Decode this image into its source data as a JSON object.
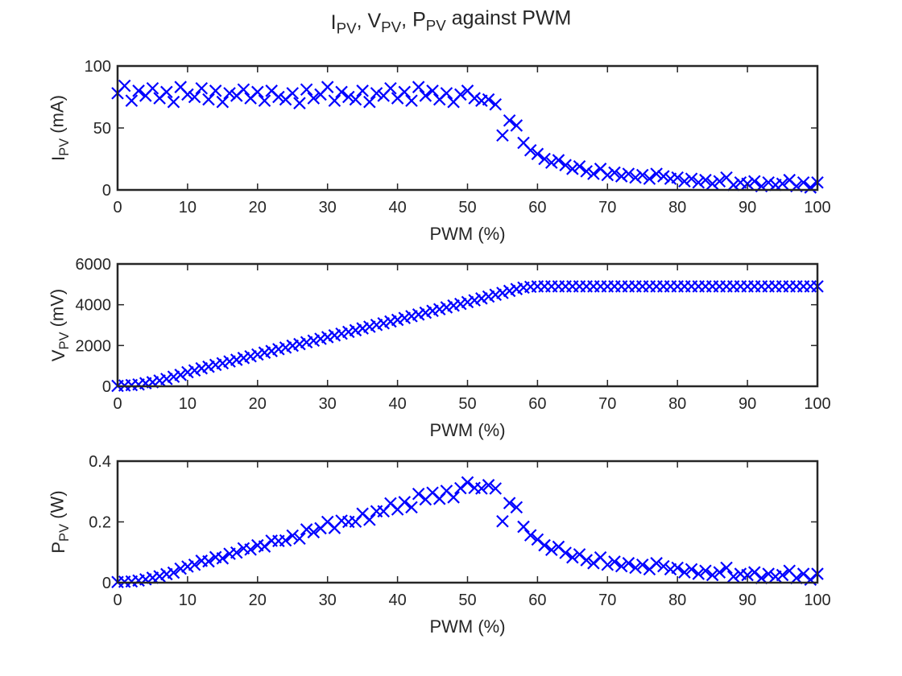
{
  "title": "I_{PV}, V_{PV}, P_{PV} against PWM",
  "chart_data": [
    {
      "type": "scatter",
      "ylabel": "I_{PV} (mA)",
      "xlabel": "PWM (%)",
      "color": "#0000ff",
      "marker": "x",
      "xlim": [
        0,
        100
      ],
      "xticks": [
        0,
        10,
        20,
        30,
        40,
        50,
        60,
        70,
        80,
        90,
        100
      ],
      "ylim": [
        0,
        100
      ],
      "yticks": [
        0,
        50,
        100
      ],
      "x": [
        0,
        1,
        2,
        3,
        4,
        5,
        6,
        7,
        8,
        9,
        10,
        11,
        12,
        13,
        14,
        15,
        16,
        17,
        18,
        19,
        20,
        21,
        22,
        23,
        24,
        25,
        26,
        27,
        28,
        29,
        30,
        31,
        32,
        33,
        34,
        35,
        36,
        37,
        38,
        39,
        40,
        41,
        42,
        43,
        44,
        45,
        46,
        47,
        48,
        49,
        50,
        51,
        52,
        53,
        54,
        55,
        56,
        57,
        58,
        59,
        60,
        61,
        62,
        63,
        64,
        65,
        66,
        67,
        68,
        69,
        70,
        71,
        72,
        73,
        74,
        75,
        76,
        77,
        78,
        79,
        80,
        81,
        82,
        83,
        84,
        85,
        86,
        87,
        88,
        89,
        90,
        91,
        92,
        93,
        94,
        95,
        96,
        97,
        98,
        99,
        100
      ],
      "values": [
        78,
        84,
        72,
        80,
        76,
        82,
        74,
        79,
        71,
        83,
        77,
        75,
        82,
        73,
        80,
        71,
        78,
        76,
        81,
        74,
        79,
        72,
        80,
        75,
        73,
        78,
        70,
        81,
        74,
        77,
        83,
        72,
        79,
        75,
        73,
        80,
        71,
        78,
        76,
        82,
        74,
        79,
        72,
        83,
        76,
        80,
        73,
        78,
        71,
        77,
        80,
        74,
        72,
        73,
        69,
        44,
        56,
        52,
        38,
        32,
        29,
        25,
        22,
        24,
        20,
        17,
        19,
        15,
        13,
        17,
        12,
        14,
        11,
        13,
        10,
        12,
        9,
        13,
        11,
        9,
        10,
        7,
        9,
        6,
        8,
        5,
        7,
        10,
        4,
        6,
        5,
        7,
        3,
        6,
        4,
        5,
        8,
        3,
        6,
        2,
        6
      ]
    },
    {
      "type": "scatter",
      "ylabel": "V_{PV} (mV)",
      "xlabel": "PWM (%)",
      "color": "#0000ff",
      "marker": "x",
      "xlim": [
        0,
        100
      ],
      "xticks": [
        0,
        10,
        20,
        30,
        40,
        50,
        60,
        70,
        80,
        90,
        100
      ],
      "ylim": [
        0,
        6000
      ],
      "yticks": [
        0,
        2000,
        4000,
        6000
      ],
      "x": [
        0,
        1,
        2,
        3,
        4,
        5,
        6,
        7,
        8,
        9,
        10,
        11,
        12,
        13,
        14,
        15,
        16,
        17,
        18,
        19,
        20,
        21,
        22,
        23,
        24,
        25,
        26,
        27,
        28,
        29,
        30,
        31,
        32,
        33,
        34,
        35,
        36,
        37,
        38,
        39,
        40,
        41,
        42,
        43,
        44,
        45,
        46,
        47,
        48,
        49,
        50,
        51,
        52,
        53,
        54,
        55,
        56,
        57,
        58,
        59,
        60,
        61,
        62,
        63,
        64,
        65,
        66,
        67,
        68,
        69,
        70,
        71,
        72,
        73,
        74,
        75,
        76,
        77,
        78,
        79,
        80,
        81,
        82,
        83,
        84,
        85,
        86,
        87,
        88,
        89,
        90,
        91,
        92,
        93,
        94,
        95,
        96,
        97,
        98,
        99,
        100
      ],
      "values": [
        20,
        40,
        60,
        90,
        150,
        200,
        280,
        360,
        470,
        560,
        690,
        780,
        880,
        960,
        1050,
        1130,
        1220,
        1300,
        1390,
        1470,
        1560,
        1650,
        1730,
        1820,
        1900,
        1990,
        2070,
        2160,
        2240,
        2330,
        2410,
        2500,
        2580,
        2670,
        2750,
        2840,
        2920,
        3010,
        3090,
        3180,
        3260,
        3350,
        3440,
        3520,
        3610,
        3700,
        3780,
        3870,
        3960,
        4040,
        4130,
        4220,
        4310,
        4400,
        4490,
        4580,
        4680,
        4770,
        4840,
        4880,
        4900,
        4900,
        4900,
        4900,
        4900,
        4900,
        4900,
        4900,
        4900,
        4900,
        4900,
        4900,
        4900,
        4900,
        4900,
        4900,
        4900,
        4900,
        4900,
        4900,
        4900,
        4900,
        4900,
        4900,
        4900,
        4900,
        4900,
        4900,
        4900,
        4900,
        4900,
        4900,
        4900,
        4900,
        4900,
        4900,
        4900,
        4900,
        4900,
        4900,
        4900
      ]
    },
    {
      "type": "scatter",
      "ylabel": "P_{PV} (W)",
      "xlabel": "PWM (%)",
      "color": "#0000ff",
      "marker": "x",
      "xlim": [
        0,
        100
      ],
      "xticks": [
        0,
        10,
        20,
        30,
        40,
        50,
        60,
        70,
        80,
        90,
        100
      ],
      "ylim": [
        0,
        0.4
      ],
      "yticks": [
        0,
        0.2,
        0.4
      ],
      "x": [
        0,
        1,
        2,
        3,
        4,
        5,
        6,
        7,
        8,
        9,
        10,
        11,
        12,
        13,
        14,
        15,
        16,
        17,
        18,
        19,
        20,
        21,
        22,
        23,
        24,
        25,
        26,
        27,
        28,
        29,
        30,
        31,
        32,
        33,
        34,
        35,
        36,
        37,
        38,
        39,
        40,
        41,
        42,
        43,
        44,
        45,
        46,
        47,
        48,
        49,
        50,
        51,
        52,
        53,
        54,
        55,
        56,
        57,
        58,
        59,
        60,
        61,
        62,
        63,
        64,
        65,
        66,
        67,
        68,
        69,
        70,
        71,
        72,
        73,
        74,
        75,
        76,
        77,
        78,
        79,
        80,
        81,
        82,
        83,
        84,
        85,
        86,
        87,
        88,
        89,
        90,
        91,
        92,
        93,
        94,
        95,
        96,
        97,
        98,
        99,
        100
      ],
      "values": [
        0.002,
        0.003,
        0.004,
        0.007,
        0.011,
        0.016,
        0.021,
        0.028,
        0.033,
        0.046,
        0.053,
        0.059,
        0.072,
        0.07,
        0.084,
        0.08,
        0.095,
        0.099,
        0.113,
        0.109,
        0.123,
        0.119,
        0.138,
        0.137,
        0.139,
        0.155,
        0.145,
        0.175,
        0.166,
        0.179,
        0.2,
        0.18,
        0.204,
        0.2,
        0.201,
        0.227,
        0.207,
        0.235,
        0.235,
        0.261,
        0.241,
        0.265,
        0.248,
        0.292,
        0.274,
        0.296,
        0.276,
        0.302,
        0.281,
        0.311,
        0.33,
        0.312,
        0.31,
        0.321,
        0.31,
        0.202,
        0.262,
        0.248,
        0.184,
        0.156,
        0.142,
        0.123,
        0.108,
        0.118,
        0.098,
        0.083,
        0.093,
        0.074,
        0.064,
        0.083,
        0.059,
        0.069,
        0.054,
        0.064,
        0.049,
        0.059,
        0.044,
        0.064,
        0.054,
        0.044,
        0.049,
        0.034,
        0.044,
        0.029,
        0.039,
        0.025,
        0.034,
        0.049,
        0.02,
        0.029,
        0.025,
        0.034,
        0.015,
        0.029,
        0.02,
        0.025,
        0.039,
        0.015,
        0.029,
        0.01,
        0.029
      ]
    }
  ]
}
